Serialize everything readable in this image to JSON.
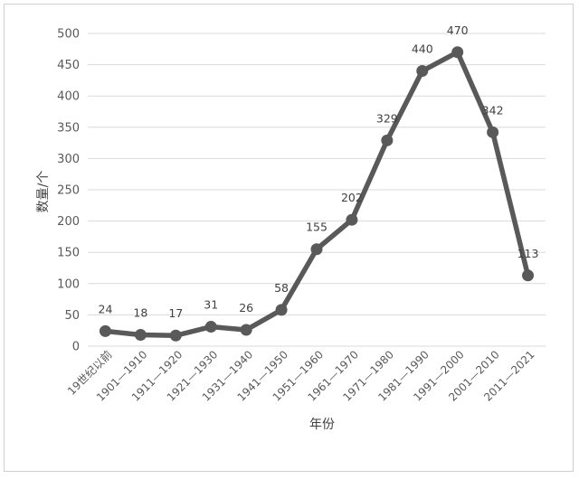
{
  "chart_data": {
    "type": "line",
    "title": "",
    "xlabel": "年份",
    "ylabel": "数量/个",
    "ylim": [
      0,
      500
    ],
    "yticks": [
      0,
      50,
      100,
      150,
      200,
      250,
      300,
      350,
      400,
      450,
      500
    ],
    "grid": true,
    "legend": "none",
    "categories": [
      "19世纪以前",
      "1901—1910",
      "1911—1920",
      "1921—1930",
      "1931—1940",
      "1941—1950",
      "1951—1960",
      "1961—1970",
      "1971—1980",
      "1981—1990",
      "1991—2000",
      "2001—2010",
      "2011—2021"
    ],
    "series": [
      {
        "values": [
          24,
          18,
          17,
          31,
          26,
          58,
          155,
          202,
          329,
          440,
          470,
          342,
          113
        ],
        "color": "#595959"
      }
    ]
  }
}
